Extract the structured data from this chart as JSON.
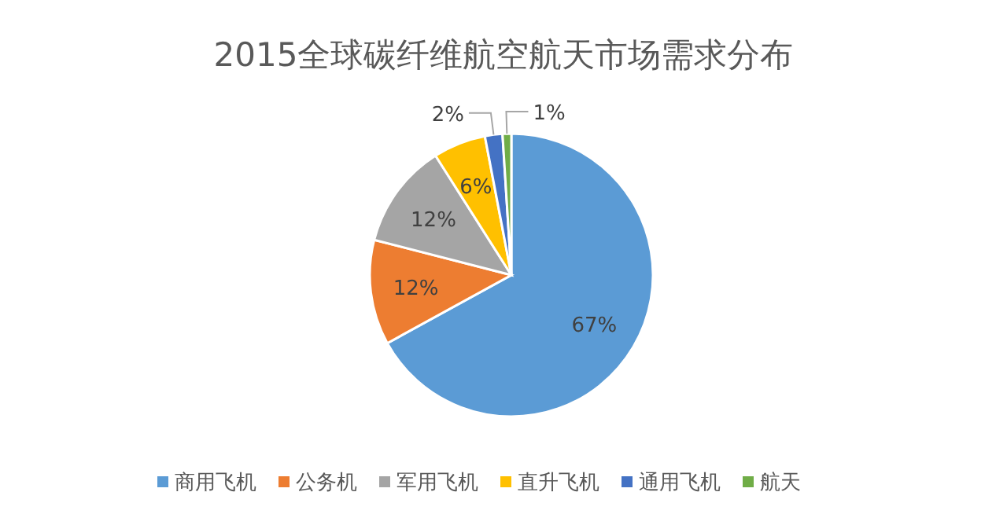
{
  "chart_data": {
    "type": "pie",
    "title": "2015全球碳纤维航空航天市场需求分布",
    "categories": [
      "商用飞机",
      "公务机",
      "军用飞机",
      "直升飞机",
      "通用飞机",
      "航天"
    ],
    "values": [
      67,
      12,
      12,
      6,
      2,
      1
    ],
    "colors": [
      "#5b9bd5",
      "#ed7d31",
      "#a5a5a5",
      "#ffc000",
      "#4472c4",
      "#70ad47"
    ],
    "value_labels": [
      "67%",
      "12%",
      "12%",
      "6%",
      "2%",
      "1%"
    ],
    "legend": "bottom"
  }
}
